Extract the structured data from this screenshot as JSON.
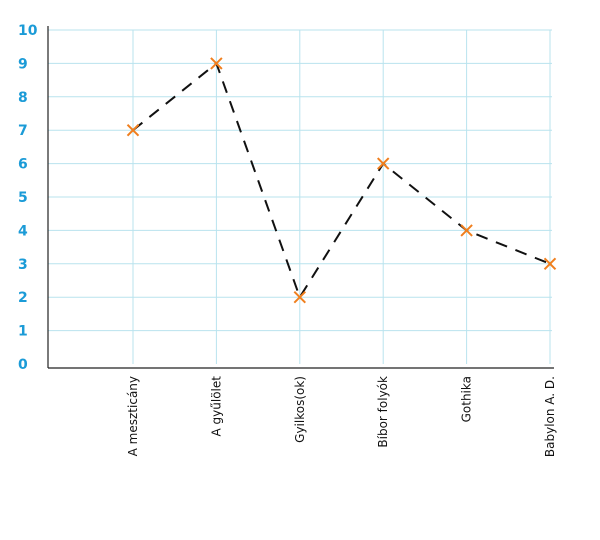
{
  "chart_data": {
    "type": "line",
    "title": "",
    "xlabel": "",
    "ylabel": "",
    "categories": [
      "A meszticány",
      "A gyűlölet",
      "Gyilkos(ok)",
      "Bíbor folyók",
      "Gothika",
      "Babylon A. D."
    ],
    "series": [
      {
        "values": [
          7,
          9,
          2,
          6,
          4,
          3
        ]
      }
    ],
    "ylim": [
      0,
      10
    ],
    "yticks": [
      "0",
      "1",
      "2",
      "3",
      "4",
      "5",
      "6",
      "7",
      "8",
      "9",
      "10"
    ],
    "grid": true,
    "legend": "none",
    "colors": {
      "line": "#111111",
      "marker": "#f07f1e",
      "grid": "#b9e3ee",
      "ytick": "#1b9bd7"
    },
    "marker": "x-mark"
  }
}
